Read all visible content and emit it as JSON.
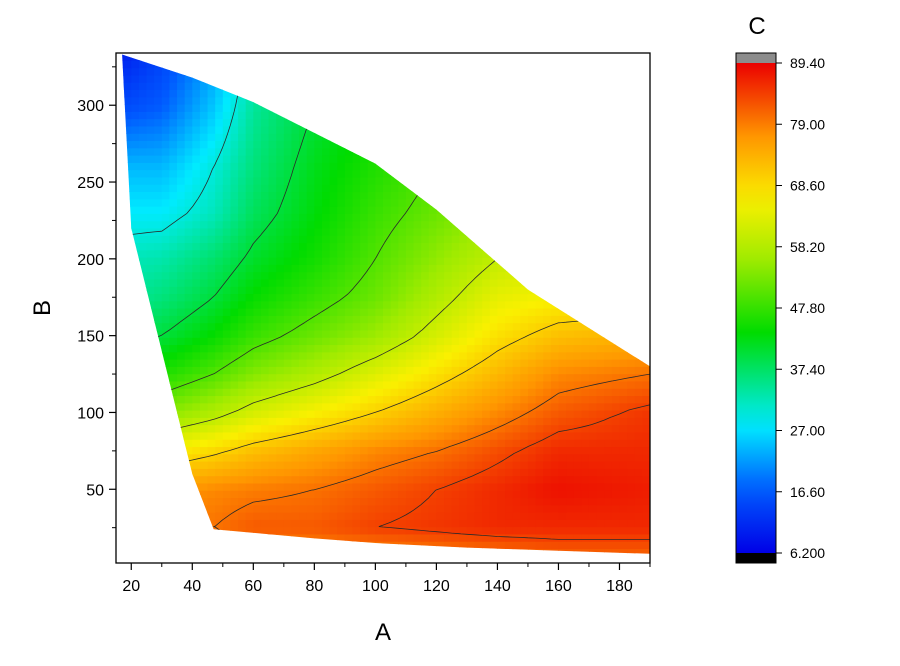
{
  "chart_data": {
    "type": "contour",
    "title": "",
    "xlabel": "A",
    "ylabel": "B",
    "colorbar_title": "C",
    "xlim": [
      15,
      190
    ],
    "ylim": [
      2,
      334
    ],
    "x_ticks": [
      20,
      40,
      60,
      80,
      100,
      120,
      140,
      160,
      180
    ],
    "y_ticks": [
      50,
      100,
      150,
      200,
      250,
      300
    ],
    "colorbar": {
      "range": [
        6.2,
        89.4
      ],
      "ticks": [
        "6.200",
        "16.60",
        "27.00",
        "37.40",
        "47.80",
        "58.20",
        "68.60",
        "79.00",
        "89.40"
      ],
      "over_color": "#8c8c8c",
      "under_color": "#000000"
    },
    "domain_boundary": [
      [
        17,
        333
      ],
      [
        40,
        318
      ],
      [
        60,
        302
      ],
      [
        80,
        282
      ],
      [
        100,
        262
      ],
      [
        120,
        232
      ],
      [
        150,
        180
      ],
      [
        190,
        130
      ],
      [
        190,
        8
      ],
      [
        160,
        10
      ],
      [
        130,
        12
      ],
      [
        100,
        15
      ],
      [
        80,
        18
      ],
      [
        47,
        24
      ],
      [
        40,
        60
      ],
      [
        30,
        140
      ],
      [
        20,
        220
      ],
      [
        17,
        333
      ]
    ],
    "grid": {
      "x": [
        17,
        30,
        47,
        60,
        80,
        100,
        120,
        140,
        160,
        190
      ],
      "y": [
        2,
        25,
        50,
        75,
        100,
        125,
        150,
        175,
        200,
        230,
        260,
        300,
        334
      ],
      "z": [
        [
          75,
          76,
          78,
          75,
          76,
          76,
          77,
          78,
          80,
          80
        ],
        [
          80,
          80,
          80,
          82,
          82,
          84,
          85,
          86,
          86,
          86
        ],
        [
          74,
          76,
          78,
          79,
          80,
          82,
          84,
          86,
          88,
          87
        ],
        [
          64,
          66,
          69,
          72,
          75,
          78,
          80,
          83,
          86,
          86
        ],
        [
          52,
          54,
          58,
          62,
          66,
          70,
          74,
          78,
          82,
          85
        ],
        [
          44,
          46,
          50,
          54,
          58,
          63,
          68,
          73,
          78,
          80
        ],
        [
          38,
          40,
          44,
          48,
          52,
          56,
          62,
          68,
          72,
          74
        ],
        [
          34,
          36,
          40,
          44,
          48,
          52,
          58,
          64,
          66,
          66
        ],
        [
          32,
          33,
          37,
          41,
          45,
          50,
          55,
          60,
          62,
          62
        ],
        [
          28,
          28,
          32,
          38,
          43,
          48,
          52,
          56,
          58,
          58
        ],
        [
          24,
          24,
          30,
          36,
          42,
          46,
          50,
          54,
          56,
          56
        ],
        [
          15,
          17,
          25,
          34,
          40,
          44,
          48,
          52,
          54,
          54
        ],
        [
          10,
          14,
          22,
          32,
          38,
          42,
          46,
          50,
          52,
          52
        ]
      ]
    },
    "contour_levels": [
      30,
      40,
      50,
      60,
      70,
      80,
      84
    ]
  }
}
